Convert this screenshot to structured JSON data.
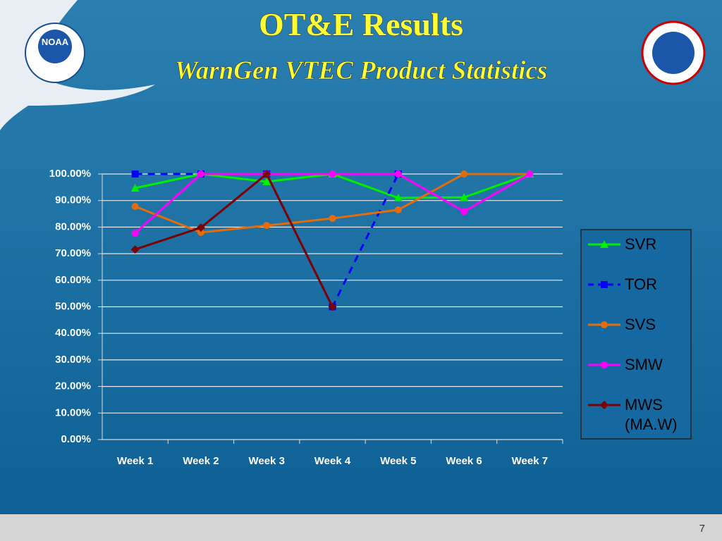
{
  "logo_text": "NOAA",
  "page_number": "7",
  "chart_data": {
    "type": "line",
    "title": "OT&E Results",
    "subtitle": "WarnGen VTEC Product Statistics",
    "categories": [
      "Week 1",
      "Week 2",
      "Week 3",
      "Week 4",
      "Week 5",
      "Week 6",
      "Week 7"
    ],
    "series": [
      {
        "name": "SVR",
        "color": "#00ee00",
        "marker": "triangle",
        "line_style": "solid",
        "values": [
          94.7,
          100,
          97.1,
          100,
          91,
          91.2,
          100
        ]
      },
      {
        "name": "TOR",
        "color": "#0000ff",
        "marker": "square",
        "line_style": "dashed",
        "values": [
          100,
          100,
          100,
          50,
          100,
          null,
          null
        ]
      },
      {
        "name": "SVS",
        "color": "#e46c0a",
        "marker": "circle",
        "line_style": "solid",
        "values": [
          87.8,
          78,
          80.6,
          83.3,
          86.5,
          100,
          100
        ]
      },
      {
        "name": "SMW",
        "color": "#ff00ff",
        "marker": "circle",
        "line_style": "solid",
        "values": [
          77.7,
          100,
          100,
          100,
          100,
          85.9,
          100
        ]
      },
      {
        "name": "MWS (MA.W)",
        "color": "#7f0000",
        "marker": "diamond",
        "line_style": "solid",
        "values": [
          71.6,
          79.8,
          100,
          50,
          null,
          null,
          null
        ]
      }
    ],
    "ylim": [
      0,
      100
    ],
    "yticks": [
      {
        "value": 0,
        "label": "0.00%"
      },
      {
        "value": 10,
        "label": "10.00%"
      },
      {
        "value": 20,
        "label": "20.00%"
      },
      {
        "value": 30,
        "label": "30.00%"
      },
      {
        "value": 40,
        "label": "40.00%"
      },
      {
        "value": 50,
        "label": "50.00%"
      },
      {
        "value": 60,
        "label": "60.00%"
      },
      {
        "value": 70,
        "label": "70.00%"
      },
      {
        "value": 80,
        "label": "80.00%"
      },
      {
        "value": 90,
        "label": "90.00%"
      },
      {
        "value": 100,
        "label": "100.00%"
      }
    ],
    "grid": true,
    "legend": "right"
  }
}
